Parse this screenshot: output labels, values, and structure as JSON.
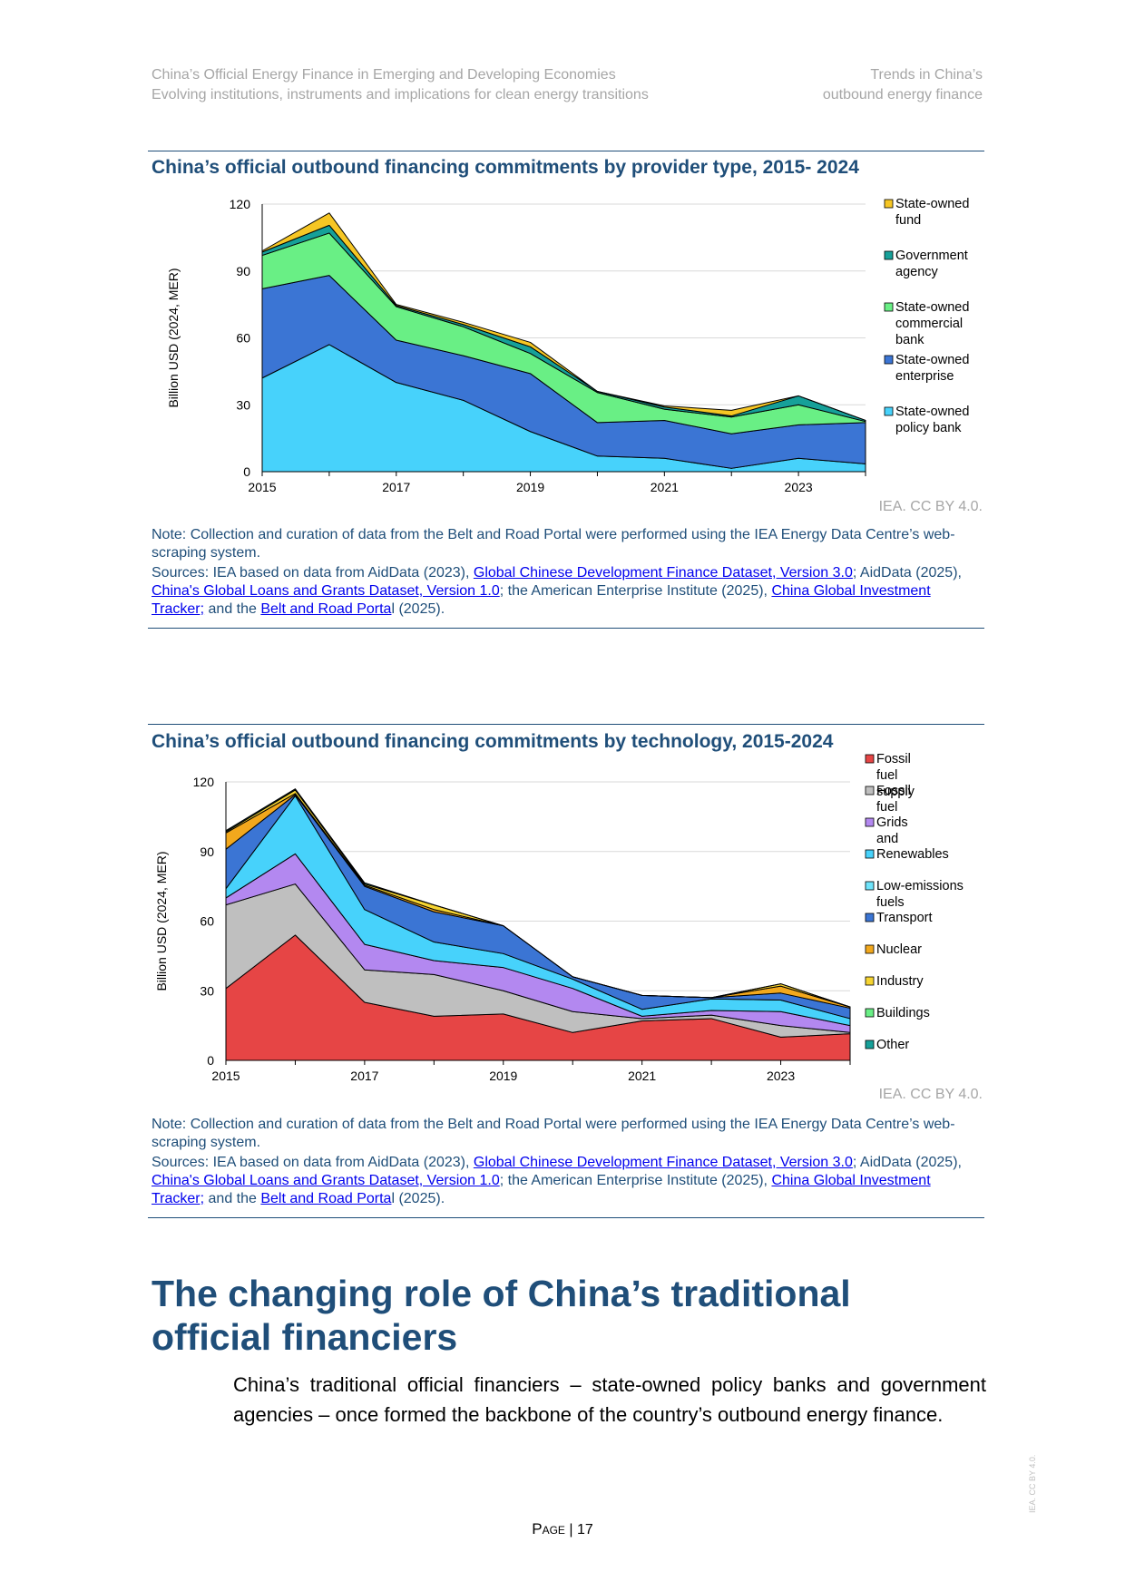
{
  "header": {
    "left_line1": "China’s Official Energy Finance in Emerging and Developing Economies",
    "left_line2": "Evolving institutions, instruments and implications for clean energy transitions",
    "right_line1": "Trends in China’s",
    "right_line2": "outbound energy finance"
  },
  "figure1": {
    "title": "China’s official outbound financing commitments by provider type, 2015- 2024",
    "credit": "IEA. CC BY 4.0.",
    "note": "Note: Collection and curation of data from the Belt and Road Portal were performed using the IEA Energy Data Centre’s web-scraping system.",
    "sources": {
      "prefix": "Sources: IEA based on data from AidData (2023), ",
      "link1": "Global Chinese Development Finance Dataset, Version 3.0",
      "mid1": "; AidData (2025), ",
      "link2": "China's Global Loans and Grants Dataset, Version 1.0",
      "mid2": "; the American Enterprise Institute (2025), ",
      "link3": "China Global Investment Tracker;",
      "mid3": " and the ",
      "link4": "Belt and Road Porta",
      "suffix": "l (2025)."
    }
  },
  "figure2": {
    "title": "China’s official outbound financing commitments by technology, 2015-2024",
    "credit": "IEA. CC BY 4.0.",
    "note": "Note: Collection and curation of data from the Belt and Road Portal were performed using the IEA Energy Data Centre’s web-scraping system.",
    "sources": {
      "prefix": "Sources: IEA based on data from AidData (2023), ",
      "link1": "Global Chinese Development Finance Dataset, Version 3.0",
      "mid1": "; AidData (2025), ",
      "link2": "China's Global Loans and Grants Dataset, Version 1.0",
      "mid2": "; the American Enterprise Institute (2025), ",
      "link3": "China Global Investment Tracker;",
      "mid3": " and the ",
      "link4": "Belt and Road Porta",
      "suffix": "l (2025)."
    }
  },
  "section": {
    "heading": "The changing role of China’s traditional official financiers",
    "lead": "China’s traditional official financiers – state-owned policy banks and government agencies – once formed the backbone of the country’s outbound energy finance."
  },
  "footer": {
    "page_word": "Page",
    "page_sep": " | ",
    "page_number": "17",
    "side_credit": "IEA. CC BY 4.0."
  },
  "chart_data": [
    {
      "type": "area",
      "stacked": true,
      "title": "China’s official outbound financing commitments by provider type, 2015- 2024",
      "ylabel": "Billion USD (2024, MER)",
      "x": [
        2015,
        2016,
        2017,
        2018,
        2019,
        2020,
        2021,
        2022,
        2023,
        2024
      ],
      "x_tick_labels": [
        "2015",
        "2017",
        "2019",
        "2021",
        "2023"
      ],
      "ylim": [
        0,
        120
      ],
      "y_ticks": [
        0,
        30,
        60,
        90,
        120
      ],
      "grid": true,
      "legend_position": "right",
      "series": [
        {
          "name": "State-owned policy bank",
          "color": "#47d2fb",
          "values": [
            42,
            57,
            40,
            32,
            18,
            7,
            6,
            1.5,
            6,
            3.5
          ]
        },
        {
          "name": "State-owned enterprise",
          "color": "#3b75d4",
          "values": [
            40,
            31,
            19,
            20,
            26,
            15,
            17,
            15.5,
            15,
            18.5
          ]
        },
        {
          "name": "State-owned commercial bank",
          "color": "#69ef85",
          "values": [
            15,
            19,
            15,
            13,
            9,
            13.5,
            5,
            7.5,
            9,
            0.5
          ]
        },
        {
          "name": "Government agency",
          "color": "#16a099",
          "values": [
            1.5,
            3.5,
            0.5,
            1,
            3,
            0.5,
            1,
            0.5,
            4,
            0.5
          ]
        },
        {
          "name": "State-owned fund",
          "color": "#f6c624",
          "values": [
            0.5,
            5.5,
            0.5,
            1,
            2,
            0,
            0.5,
            2.5,
            0,
            0
          ]
        }
      ]
    },
    {
      "type": "area",
      "stacked": true,
      "title": "China’s official outbound financing commitments by technology, 2015-2024",
      "ylabel": "Billion USD (2024, MER)",
      "x": [
        2015,
        2016,
        2017,
        2018,
        2019,
        2020,
        2021,
        2022,
        2023,
        2024
      ],
      "x_tick_labels": [
        "2015",
        "2017",
        "2019",
        "2021",
        "2023"
      ],
      "ylim": [
        0,
        120
      ],
      "y_ticks": [
        0,
        30,
        60,
        90,
        120
      ],
      "grid": true,
      "legend_position": "right",
      "series": [
        {
          "name": "Fossil fuel supply",
          "color": "#e64545",
          "values": [
            31,
            54,
            25,
            19,
            20,
            12,
            17,
            18,
            10,
            11.5
          ]
        },
        {
          "name": "Fossil fuel generation",
          "color": "#bfbfbf",
          "values": [
            36,
            22,
            14,
            18,
            10,
            9,
            1,
            1.5,
            5,
            0.5
          ]
        },
        {
          "name": "Grids and storage",
          "color": "#b388f0",
          "values": [
            3,
            13,
            11,
            6,
            10,
            10,
            1,
            2,
            6,
            3
          ]
        },
        {
          "name": "Renewables generation",
          "color": "#47d2fb",
          "values": [
            4,
            25,
            15,
            8,
            6,
            4,
            3,
            5,
            5,
            3
          ]
        },
        {
          "name": "Low-emissions fuels",
          "color": "#6fe4fb",
          "values": [
            0,
            0,
            0,
            0,
            0,
            0,
            0,
            0,
            0,
            0
          ]
        },
        {
          "name": "Transport",
          "color": "#3b75d4",
          "values": [
            17,
            0.5,
            10,
            13,
            12,
            1,
            6,
            0.5,
            3,
            4.5
          ]
        },
        {
          "name": "Nuclear generation",
          "color": "#f2a81d",
          "values": [
            7,
            0.5,
            0.5,
            1,
            0,
            0,
            0,
            0,
            3,
            0.5
          ]
        },
        {
          "name": "Industry",
          "color": "#f6d431",
          "values": [
            0.5,
            1.5,
            0.5,
            2,
            0,
            0,
            0,
            0,
            1,
            0
          ]
        },
        {
          "name": "Buildings",
          "color": "#69ef85",
          "values": [
            0,
            0,
            0,
            0,
            0,
            0,
            0,
            0,
            0,
            0
          ]
        },
        {
          "name": "Other",
          "color": "#16a099",
          "values": [
            0.5,
            0.5,
            0.5,
            0,
            0,
            0,
            0,
            0,
            0,
            0
          ]
        }
      ]
    }
  ]
}
